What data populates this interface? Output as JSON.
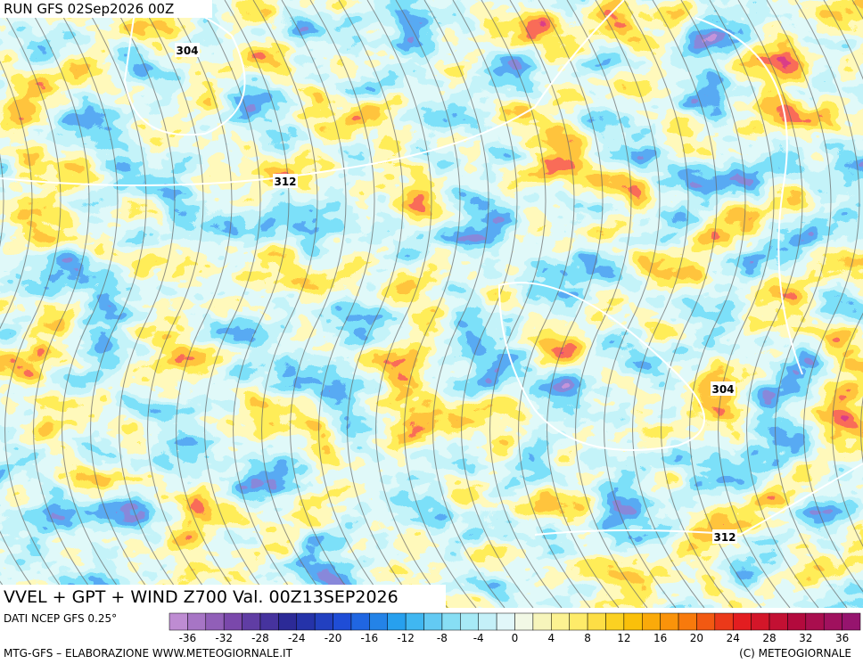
{
  "header": {
    "run": "RUN GFS 02Sep2026 00Z"
  },
  "map": {
    "contour_labels": [
      "304",
      "312",
      "304",
      "312"
    ]
  },
  "title": "VVEL + GPT + WIND Z700 Val. 00Z13SEP2026",
  "colorbar": {
    "source": "DATI NCEP GFS 0.25°",
    "ticks": [
      -36,
      -32,
      -28,
      -24,
      -20,
      -16,
      -12,
      -8,
      -4,
      0,
      4,
      8,
      12,
      16,
      20,
      24,
      28,
      32,
      36
    ]
  },
  "footer": {
    "left": "MTG-GFS – ELABORAZIONE WWW.METEOGIORNALE.IT",
    "right": "(C) METEOGIORNALE"
  }
}
